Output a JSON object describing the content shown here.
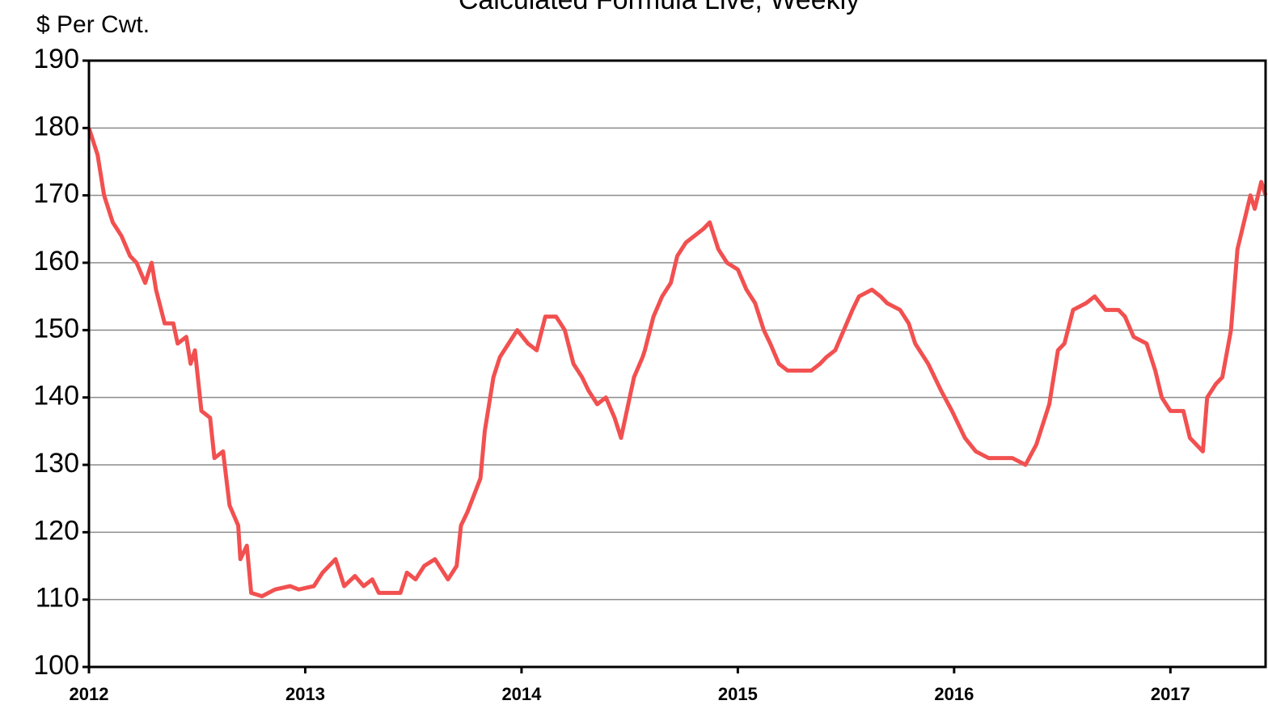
{
  "chart_data": {
    "type": "line",
    "title": "Calculated Formula Live, Weekly",
    "y_label": "$ Per Cwt.",
    "x": [
      2012.0,
      2012.04,
      2012.07,
      2012.11,
      2012.15,
      2012.19,
      2012.22,
      2012.26,
      2012.29,
      2012.31,
      2012.35,
      2012.39,
      2012.41,
      2012.45,
      2012.47,
      2012.49,
      2012.52,
      2012.56,
      2012.58,
      2012.62,
      2012.65,
      2012.69,
      2012.7,
      2012.73,
      2012.75,
      2012.8,
      2012.86,
      2012.93,
      2012.97,
      2013.04,
      2013.08,
      2013.14,
      2013.18,
      2013.23,
      2013.27,
      2013.31,
      2013.34,
      2013.4,
      2013.44,
      2013.47,
      2013.51,
      2013.55,
      2013.6,
      2013.66,
      2013.7,
      2013.72,
      2013.75,
      2013.81,
      2013.83,
      2013.87,
      2013.9,
      2013.94,
      2013.98,
      2014.03,
      2014.07,
      2014.11,
      2014.16,
      2014.2,
      2014.24,
      2014.28,
      2014.31,
      2014.35,
      2014.39,
      2014.43,
      2014.46,
      2014.48,
      2014.52,
      2014.56,
      2014.57,
      2014.61,
      2014.65,
      2014.69,
      2014.72,
      2014.76,
      2014.8,
      2014.84,
      2014.87,
      2014.91,
      2014.95,
      2015.0,
      2015.04,
      2015.08,
      2015.12,
      2015.15,
      2015.19,
      2015.23,
      2015.27,
      2015.3,
      2015.34,
      2015.38,
      2015.41,
      2015.45,
      2015.49,
      2015.53,
      2015.56,
      2015.62,
      2015.66,
      2015.69,
      2015.75,
      2015.79,
      2015.82,
      2015.88,
      2015.94,
      2015.99,
      2016.05,
      2016.1,
      2016.16,
      2016.22,
      2016.27,
      2016.33,
      2016.38,
      2016.44,
      2016.48,
      2016.51,
      2016.55,
      2016.61,
      2016.65,
      2016.7,
      2016.76,
      2016.79,
      2016.83,
      2016.89,
      2016.93,
      2016.96,
      2017.0,
      2017.06,
      2017.09,
      2017.15,
      2017.17,
      2017.21,
      2017.24,
      2017.28,
      2017.31,
      2017.34,
      2017.37,
      2017.39,
      2017.42,
      2017.44
    ],
    "series": [
      {
        "color": "#f25050",
        "values": [
          180,
          176,
          170,
          166,
          164,
          161,
          160,
          157,
          160,
          156,
          151,
          151,
          148,
          149,
          145,
          147,
          138,
          137,
          131,
          132,
          124,
          121,
          116,
          118,
          111,
          110.5,
          111.5,
          112,
          111.5,
          112,
          114,
          116,
          112,
          113.5,
          112,
          113,
          111,
          111,
          111,
          114,
          113,
          115,
          116,
          113,
          115,
          121,
          123,
          128,
          135,
          143,
          146,
          148,
          150,
          148,
          147,
          152,
          152,
          150,
          145,
          143,
          141,
          139,
          140,
          137,
          134,
          137,
          143,
          146,
          147,
          152,
          155,
          157,
          161,
          163,
          164,
          165,
          166,
          162,
          160,
          159,
          156,
          154,
          150,
          148,
          145,
          144,
          144,
          144,
          144,
          145,
          146,
          147,
          150,
          153,
          155,
          156,
          155,
          154,
          153,
          151,
          148,
          145,
          141,
          138,
          134,
          132,
          131,
          131,
          131,
          130,
          133,
          139,
          147,
          148,
          153,
          154,
          155,
          153,
          153,
          152,
          149,
          148,
          144,
          140,
          138,
          138,
          134,
          132,
          140,
          142,
          143,
          150,
          162,
          166,
          170,
          168,
          172,
          170
        ]
      }
    ],
    "xlim": [
      2012,
      2017.44
    ],
    "xticks": [
      2012,
      2013,
      2014,
      2015,
      2016,
      2017
    ],
    "ylim": [
      100,
      190
    ],
    "yticks": [
      100,
      110,
      120,
      130,
      140,
      150,
      160,
      170,
      180,
      190
    ],
    "grid": true
  }
}
